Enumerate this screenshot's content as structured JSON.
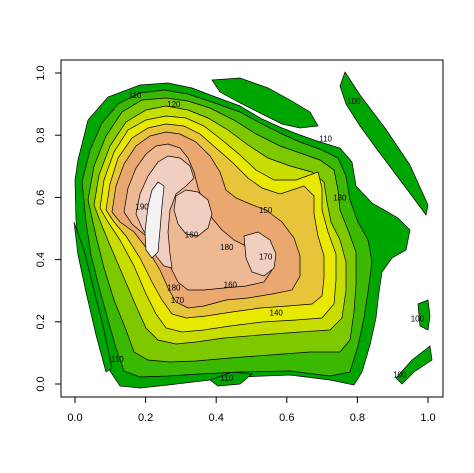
{
  "chart_data": {
    "type": "contour",
    "title": "",
    "xlabel": "",
    "ylabel": "",
    "xlim": [
      0.0,
      1.0
    ],
    "ylim": [
      0.0,
      1.0
    ],
    "x_ticks": [
      "0.0",
      "0.2",
      "0.4",
      "0.6",
      "0.8",
      "1.0"
    ],
    "y_ticks": [
      "0.0",
      "0.2",
      "0.4",
      "0.6",
      "0.8",
      "1.0"
    ],
    "grid": false,
    "levels": [
      100,
      110,
      120,
      130,
      140,
      150,
      160,
      170,
      180,
      190
    ],
    "colors": {
      "100-110": "#00a600",
      "110-120": "#3bb800",
      "120-130": "#7ec800",
      "130-140": "#c7dd00",
      "140-150": "#e8e800",
      "150-160": "#e8c43a",
      "160-170": "#eaa870",
      "170-180": "#edb892",
      "180-190": "#f0cfc0",
      "190-200": "#f2f2f2"
    },
    "contour_labels": [
      {
        "text": "110",
        "x": 0.17,
        "y": 0.93
      },
      {
        "text": "120",
        "x": 0.28,
        "y": 0.9
      },
      {
        "text": "110",
        "x": 0.71,
        "y": 0.79
      },
      {
        "text": "100",
        "x": 0.79,
        "y": 0.91
      },
      {
        "text": "130",
        "x": 0.75,
        "y": 0.6
      },
      {
        "text": "150",
        "x": 0.54,
        "y": 0.56
      },
      {
        "text": "190",
        "x": 0.19,
        "y": 0.57
      },
      {
        "text": "160",
        "x": 0.33,
        "y": 0.48
      },
      {
        "text": "180",
        "x": 0.43,
        "y": 0.44
      },
      {
        "text": "170",
        "x": 0.54,
        "y": 0.41
      },
      {
        "text": "180",
        "x": 0.28,
        "y": 0.31
      },
      {
        "text": "160",
        "x": 0.44,
        "y": 0.32
      },
      {
        "text": "170",
        "x": 0.29,
        "y": 0.27
      },
      {
        "text": "140",
        "x": 0.57,
        "y": 0.23
      },
      {
        "text": "100",
        "x": 0.97,
        "y": 0.21
      },
      {
        "text": "110",
        "x": 0.12,
        "y": 0.08
      },
      {
        "text": "110",
        "x": 0.43,
        "y": 0.02
      },
      {
        "text": "100",
        "x": 0.92,
        "y": 0.03
      }
    ]
  }
}
